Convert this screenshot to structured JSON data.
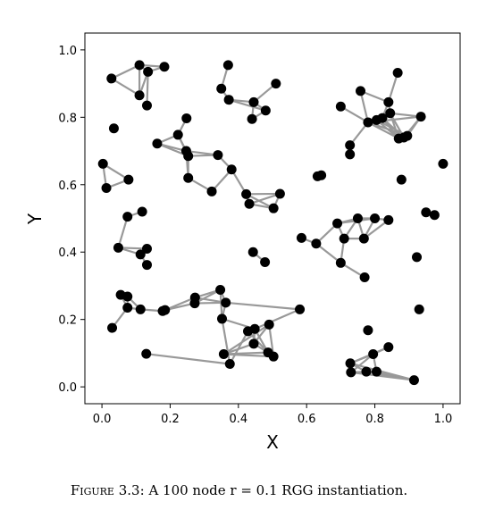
{
  "caption": {
    "label": "Figure 3.3:",
    "text": "A 100 node r = 0.1 RGG instantiation."
  },
  "chart_data": {
    "type": "scatter",
    "title": "",
    "xlabel": "X",
    "ylabel": "Y",
    "xlim": [
      -0.05,
      1.05
    ],
    "ylim": [
      -0.05,
      1.05
    ],
    "xticks": [
      "0.0",
      "0.2",
      "0.4",
      "0.6",
      "0.8",
      "1.0"
    ],
    "yticks": [
      "0.0",
      "0.2",
      "0.4",
      "0.6",
      "0.8",
      "1.0"
    ],
    "grid": false,
    "node_color": "#000000",
    "edge_color": "#999999",
    "nodes": [
      [
        0.028,
        0.915
      ],
      [
        0.11,
        0.955
      ],
      [
        0.135,
        0.935
      ],
      [
        0.183,
        0.95
      ],
      [
        0.11,
        0.865
      ],
      [
        0.132,
        0.835
      ],
      [
        0.37,
        0.955
      ],
      [
        0.35,
        0.885
      ],
      [
        0.372,
        0.852
      ],
      [
        0.445,
        0.845
      ],
      [
        0.51,
        0.9
      ],
      [
        0.48,
        0.82
      ],
      [
        0.44,
        0.795
      ],
      [
        0.035,
        0.767
      ],
      [
        0.003,
        0.662
      ],
      [
        0.013,
        0.59
      ],
      [
        0.078,
        0.615
      ],
      [
        0.248,
        0.797
      ],
      [
        0.223,
        0.748
      ],
      [
        0.162,
        0.722
      ],
      [
        0.247,
        0.7
      ],
      [
        0.253,
        0.685
      ],
      [
        0.253,
        0.62
      ],
      [
        0.34,
        0.688
      ],
      [
        0.38,
        0.645
      ],
      [
        0.322,
        0.58
      ],
      [
        0.423,
        0.572
      ],
      [
        0.432,
        0.543
      ],
      [
        0.503,
        0.53
      ],
      [
        0.522,
        0.573
      ],
      [
        0.632,
        0.625
      ],
      [
        0.643,
        0.628
      ],
      [
        0.075,
        0.505
      ],
      [
        0.118,
        0.52
      ],
      [
        0.048,
        0.413
      ],
      [
        0.113,
        0.393
      ],
      [
        0.132,
        0.41
      ],
      [
        0.132,
        0.362
      ],
      [
        0.585,
        0.442
      ],
      [
        0.628,
        0.425
      ],
      [
        0.69,
        0.485
      ],
      [
        0.71,
        0.44
      ],
      [
        0.75,
        0.5
      ],
      [
        0.768,
        0.44
      ],
      [
        0.8,
        0.5
      ],
      [
        0.84,
        0.495
      ],
      [
        0.7,
        0.368
      ],
      [
        0.77,
        0.325
      ],
      [
        0.443,
        0.4
      ],
      [
        0.478,
        0.37
      ],
      [
        0.867,
        0.932
      ],
      [
        0.758,
        0.878
      ],
      [
        0.7,
        0.832
      ],
      [
        0.84,
        0.845
      ],
      [
        0.78,
        0.785
      ],
      [
        0.805,
        0.792
      ],
      [
        0.822,
        0.798
      ],
      [
        0.845,
        0.812
      ],
      [
        0.935,
        0.802
      ],
      [
        0.895,
        0.745
      ],
      [
        0.885,
        0.74
      ],
      [
        0.87,
        0.737
      ],
      [
        0.727,
        0.717
      ],
      [
        0.727,
        0.69
      ],
      [
        0.878,
        0.615
      ],
      [
        1.0,
        0.662
      ],
      [
        0.95,
        0.518
      ],
      [
        0.975,
        0.51
      ],
      [
        0.923,
        0.385
      ],
      [
        0.055,
        0.273
      ],
      [
        0.075,
        0.268
      ],
      [
        0.075,
        0.235
      ],
      [
        0.03,
        0.175
      ],
      [
        0.113,
        0.23
      ],
      [
        0.178,
        0.225
      ],
      [
        0.185,
        0.228
      ],
      [
        0.273,
        0.265
      ],
      [
        0.272,
        0.248
      ],
      [
        0.347,
        0.288
      ],
      [
        0.363,
        0.25
      ],
      [
        0.352,
        0.202
      ],
      [
        0.58,
        0.23
      ],
      [
        0.428,
        0.165
      ],
      [
        0.448,
        0.172
      ],
      [
        0.445,
        0.128
      ],
      [
        0.49,
        0.185
      ],
      [
        0.487,
        0.102
      ],
      [
        0.503,
        0.09
      ],
      [
        0.357,
        0.097
      ],
      [
        0.375,
        0.068
      ],
      [
        0.13,
        0.098
      ],
      [
        0.93,
        0.23
      ],
      [
        0.78,
        0.168
      ],
      [
        0.84,
        0.118
      ],
      [
        0.795,
        0.097
      ],
      [
        0.728,
        0.07
      ],
      [
        0.73,
        0.043
      ],
      [
        0.775,
        0.045
      ],
      [
        0.805,
        0.045
      ],
      [
        0.915,
        0.02
      ]
    ],
    "edges": [
      [
        0,
        1
      ],
      [
        1,
        2
      ],
      [
        1,
        3
      ],
      [
        2,
        3
      ],
      [
        2,
        4
      ],
      [
        2,
        5
      ],
      [
        4,
        1
      ],
      [
        4,
        0
      ],
      [
        6,
        7
      ],
      [
        7,
        8
      ],
      [
        8,
        9
      ],
      [
        9,
        10
      ],
      [
        9,
        11
      ],
      [
        9,
        12
      ],
      [
        8,
        11
      ],
      [
        11,
        12
      ],
      [
        14,
        15
      ],
      [
        15,
        16
      ],
      [
        14,
        16
      ],
      [
        17,
        18
      ],
      [
        18,
        19
      ],
      [
        18,
        20
      ],
      [
        18,
        21
      ],
      [
        19,
        20
      ],
      [
        19,
        21
      ],
      [
        20,
        21
      ],
      [
        20,
        22
      ],
      [
        21,
        22
      ],
      [
        20,
        23
      ],
      [
        21,
        23
      ],
      [
        23,
        24
      ],
      [
        24,
        25
      ],
      [
        24,
        26
      ],
      [
        25,
        22
      ],
      [
        26,
        27
      ],
      [
        26,
        28
      ],
      [
        27,
        28
      ],
      [
        26,
        29
      ],
      [
        29,
        28
      ],
      [
        27,
        29
      ],
      [
        30,
        31
      ],
      [
        32,
        33
      ],
      [
        32,
        34
      ],
      [
        34,
        35
      ],
      [
        34,
        36
      ],
      [
        35,
        36
      ],
      [
        35,
        37
      ],
      [
        38,
        39
      ],
      [
        39,
        40
      ],
      [
        39,
        46
      ],
      [
        40,
        41
      ],
      [
        40,
        42
      ],
      [
        41,
        42
      ],
      [
        41,
        43
      ],
      [
        42,
        43
      ],
      [
        42,
        44
      ],
      [
        43,
        44
      ],
      [
        40,
        44
      ],
      [
        44,
        45
      ],
      [
        43,
        45
      ],
      [
        46,
        41
      ],
      [
        46,
        47
      ],
      [
        48,
        49
      ],
      [
        50,
        53
      ],
      [
        51,
        53
      ],
      [
        51,
        54
      ],
      [
        52,
        54
      ],
      [
        53,
        56
      ],
      [
        53,
        57
      ],
      [
        54,
        55
      ],
      [
        55,
        56
      ],
      [
        56,
        57
      ],
      [
        54,
        58
      ],
      [
        57,
        58
      ],
      [
        54,
        59
      ],
      [
        55,
        59
      ],
      [
        56,
        60
      ],
      [
        57,
        61
      ],
      [
        58,
        59
      ],
      [
        58,
        60
      ],
      [
        54,
        61
      ],
      [
        55,
        61
      ],
      [
        56,
        61
      ],
      [
        54,
        62
      ],
      [
        62,
        63
      ],
      [
        59,
        60
      ],
      [
        60,
        61
      ],
      [
        59,
        61
      ],
      [
        57,
        60
      ],
      [
        66,
        67
      ],
      [
        69,
        70
      ],
      [
        69,
        71
      ],
      [
        70,
        71
      ],
      [
        71,
        72
      ],
      [
        71,
        73
      ],
      [
        70,
        73
      ],
      [
        73,
        74
      ],
      [
        74,
        75
      ],
      [
        75,
        76
      ],
      [
        75,
        77
      ],
      [
        76,
        77
      ],
      [
        76,
        78
      ],
      [
        77,
        78
      ],
      [
        76,
        79
      ],
      [
        78,
        79
      ],
      [
        79,
        80
      ],
      [
        79,
        81
      ],
      [
        78,
        80
      ],
      [
        77,
        79
      ],
      [
        81,
        83
      ],
      [
        80,
        83
      ],
      [
        83,
        84
      ],
      [
        84,
        85
      ],
      [
        84,
        86
      ],
      [
        83,
        86
      ],
      [
        86,
        87
      ],
      [
        85,
        87
      ],
      [
        86,
        88
      ],
      [
        84,
        88
      ],
      [
        86,
        82
      ],
      [
        82,
        89
      ],
      [
        80,
        89
      ],
      [
        89,
        90
      ],
      [
        87,
        88
      ],
      [
        85,
        88
      ],
      [
        93,
        94
      ],
      [
        93,
        95
      ],
      [
        94,
        95
      ],
      [
        95,
        96
      ],
      [
        95,
        97
      ],
      [
        94,
        96
      ],
      [
        96,
        97
      ],
      [
        96,
        98
      ],
      [
        97,
        99
      ],
      [
        98,
        99
      ],
      [
        95,
        99
      ],
      [
        94,
        98
      ],
      [
        96,
        99
      ]
    ]
  }
}
